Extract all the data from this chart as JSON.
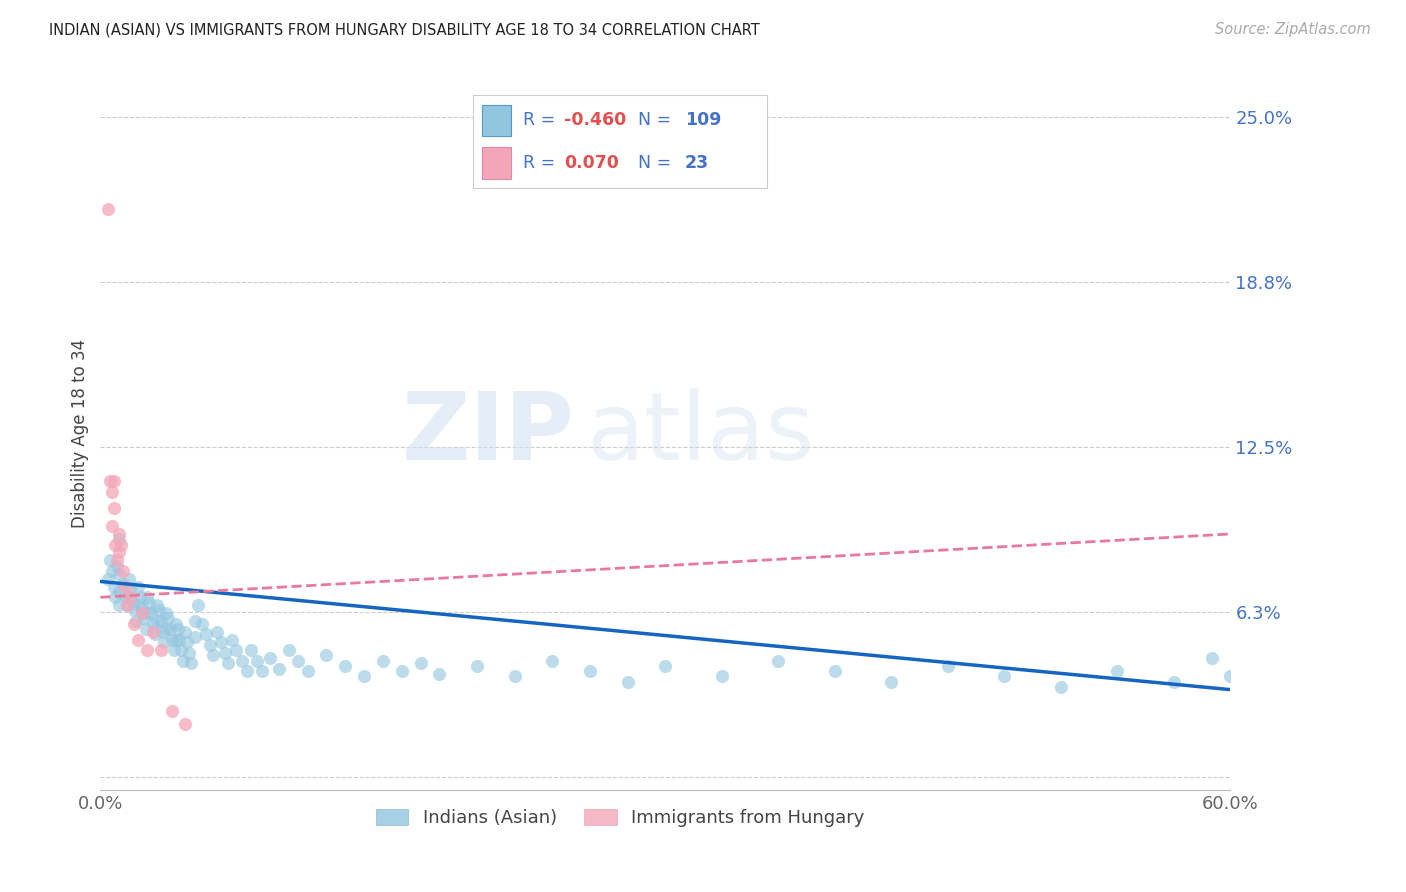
{
  "title": "INDIAN (ASIAN) VS IMMIGRANTS FROM HUNGARY DISABILITY AGE 18 TO 34 CORRELATION CHART",
  "source": "Source: ZipAtlas.com",
  "ylabel": "Disability Age 18 to 34",
  "xlim": [
    0.0,
    0.6
  ],
  "ylim": [
    -0.005,
    0.265
  ],
  "yticks": [
    0.0,
    0.0625,
    0.125,
    0.1875,
    0.25
  ],
  "ytick_labels": [
    "",
    "6.3%",
    "12.5%",
    "18.8%",
    "25.0%"
  ],
  "xtick_labels": [
    "0.0%",
    "60.0%"
  ],
  "xticks": [
    0.0,
    0.6
  ],
  "blue_color": "#92c5de",
  "pink_color": "#f4a6b8",
  "trend_blue_color": "#1565c0",
  "trend_pink_color": "#e8799a",
  "watermark_zip": "ZIP",
  "watermark_atlas": "atlas",
  "blue_scatter_x": [
    0.004,
    0.005,
    0.006,
    0.007,
    0.008,
    0.009,
    0.01,
    0.01,
    0.01,
    0.01,
    0.012,
    0.013,
    0.014,
    0.015,
    0.015,
    0.016,
    0.017,
    0.018,
    0.019,
    0.02,
    0.02,
    0.021,
    0.022,
    0.023,
    0.024,
    0.025,
    0.025,
    0.026,
    0.027,
    0.028,
    0.029,
    0.03,
    0.03,
    0.031,
    0.032,
    0.033,
    0.034,
    0.035,
    0.035,
    0.036,
    0.037,
    0.038,
    0.039,
    0.04,
    0.04,
    0.041,
    0.042,
    0.043,
    0.044,
    0.045,
    0.046,
    0.047,
    0.048,
    0.05,
    0.05,
    0.052,
    0.054,
    0.056,
    0.058,
    0.06,
    0.062,
    0.064,
    0.066,
    0.068,
    0.07,
    0.072,
    0.075,
    0.078,
    0.08,
    0.083,
    0.086,
    0.09,
    0.095,
    0.1,
    0.105,
    0.11,
    0.12,
    0.13,
    0.14,
    0.15,
    0.16,
    0.17,
    0.18,
    0.2,
    0.22,
    0.24,
    0.26,
    0.28,
    0.3,
    0.33,
    0.36,
    0.39,
    0.42,
    0.45,
    0.48,
    0.51,
    0.54,
    0.57,
    0.59,
    0.6
  ],
  "blue_scatter_y": [
    0.075,
    0.082,
    0.078,
    0.072,
    0.068,
    0.08,
    0.09,
    0.077,
    0.07,
    0.065,
    0.073,
    0.069,
    0.065,
    0.075,
    0.068,
    0.071,
    0.067,
    0.063,
    0.059,
    0.072,
    0.065,
    0.068,
    0.064,
    0.06,
    0.056,
    0.068,
    0.062,
    0.066,
    0.062,
    0.058,
    0.054,
    0.065,
    0.059,
    0.063,
    0.059,
    0.055,
    0.051,
    0.062,
    0.056,
    0.06,
    0.056,
    0.052,
    0.048,
    0.058,
    0.052,
    0.056,
    0.052,
    0.048,
    0.044,
    0.055,
    0.051,
    0.047,
    0.043,
    0.059,
    0.053,
    0.065,
    0.058,
    0.054,
    0.05,
    0.046,
    0.055,
    0.051,
    0.047,
    0.043,
    0.052,
    0.048,
    0.044,
    0.04,
    0.048,
    0.044,
    0.04,
    0.045,
    0.041,
    0.048,
    0.044,
    0.04,
    0.046,
    0.042,
    0.038,
    0.044,
    0.04,
    0.043,
    0.039,
    0.042,
    0.038,
    0.044,
    0.04,
    0.036,
    0.042,
    0.038,
    0.044,
    0.04,
    0.036,
    0.042,
    0.038,
    0.034,
    0.04,
    0.036,
    0.045,
    0.038
  ],
  "pink_scatter_x": [
    0.004,
    0.005,
    0.006,
    0.006,
    0.007,
    0.007,
    0.008,
    0.009,
    0.01,
    0.01,
    0.011,
    0.012,
    0.013,
    0.014,
    0.016,
    0.018,
    0.02,
    0.022,
    0.025,
    0.028,
    0.032,
    0.038,
    0.045
  ],
  "pink_scatter_y": [
    0.215,
    0.112,
    0.108,
    0.095,
    0.112,
    0.102,
    0.088,
    0.082,
    0.092,
    0.085,
    0.088,
    0.078,
    0.072,
    0.065,
    0.068,
    0.058,
    0.052,
    0.062,
    0.048,
    0.055,
    0.048,
    0.025,
    0.02
  ],
  "blue_trend_x": [
    0.0,
    0.6
  ],
  "blue_trend_y": [
    0.074,
    0.033
  ],
  "pink_trend_x": [
    0.0,
    0.6
  ],
  "pink_trend_y": [
    0.068,
    0.092
  ]
}
